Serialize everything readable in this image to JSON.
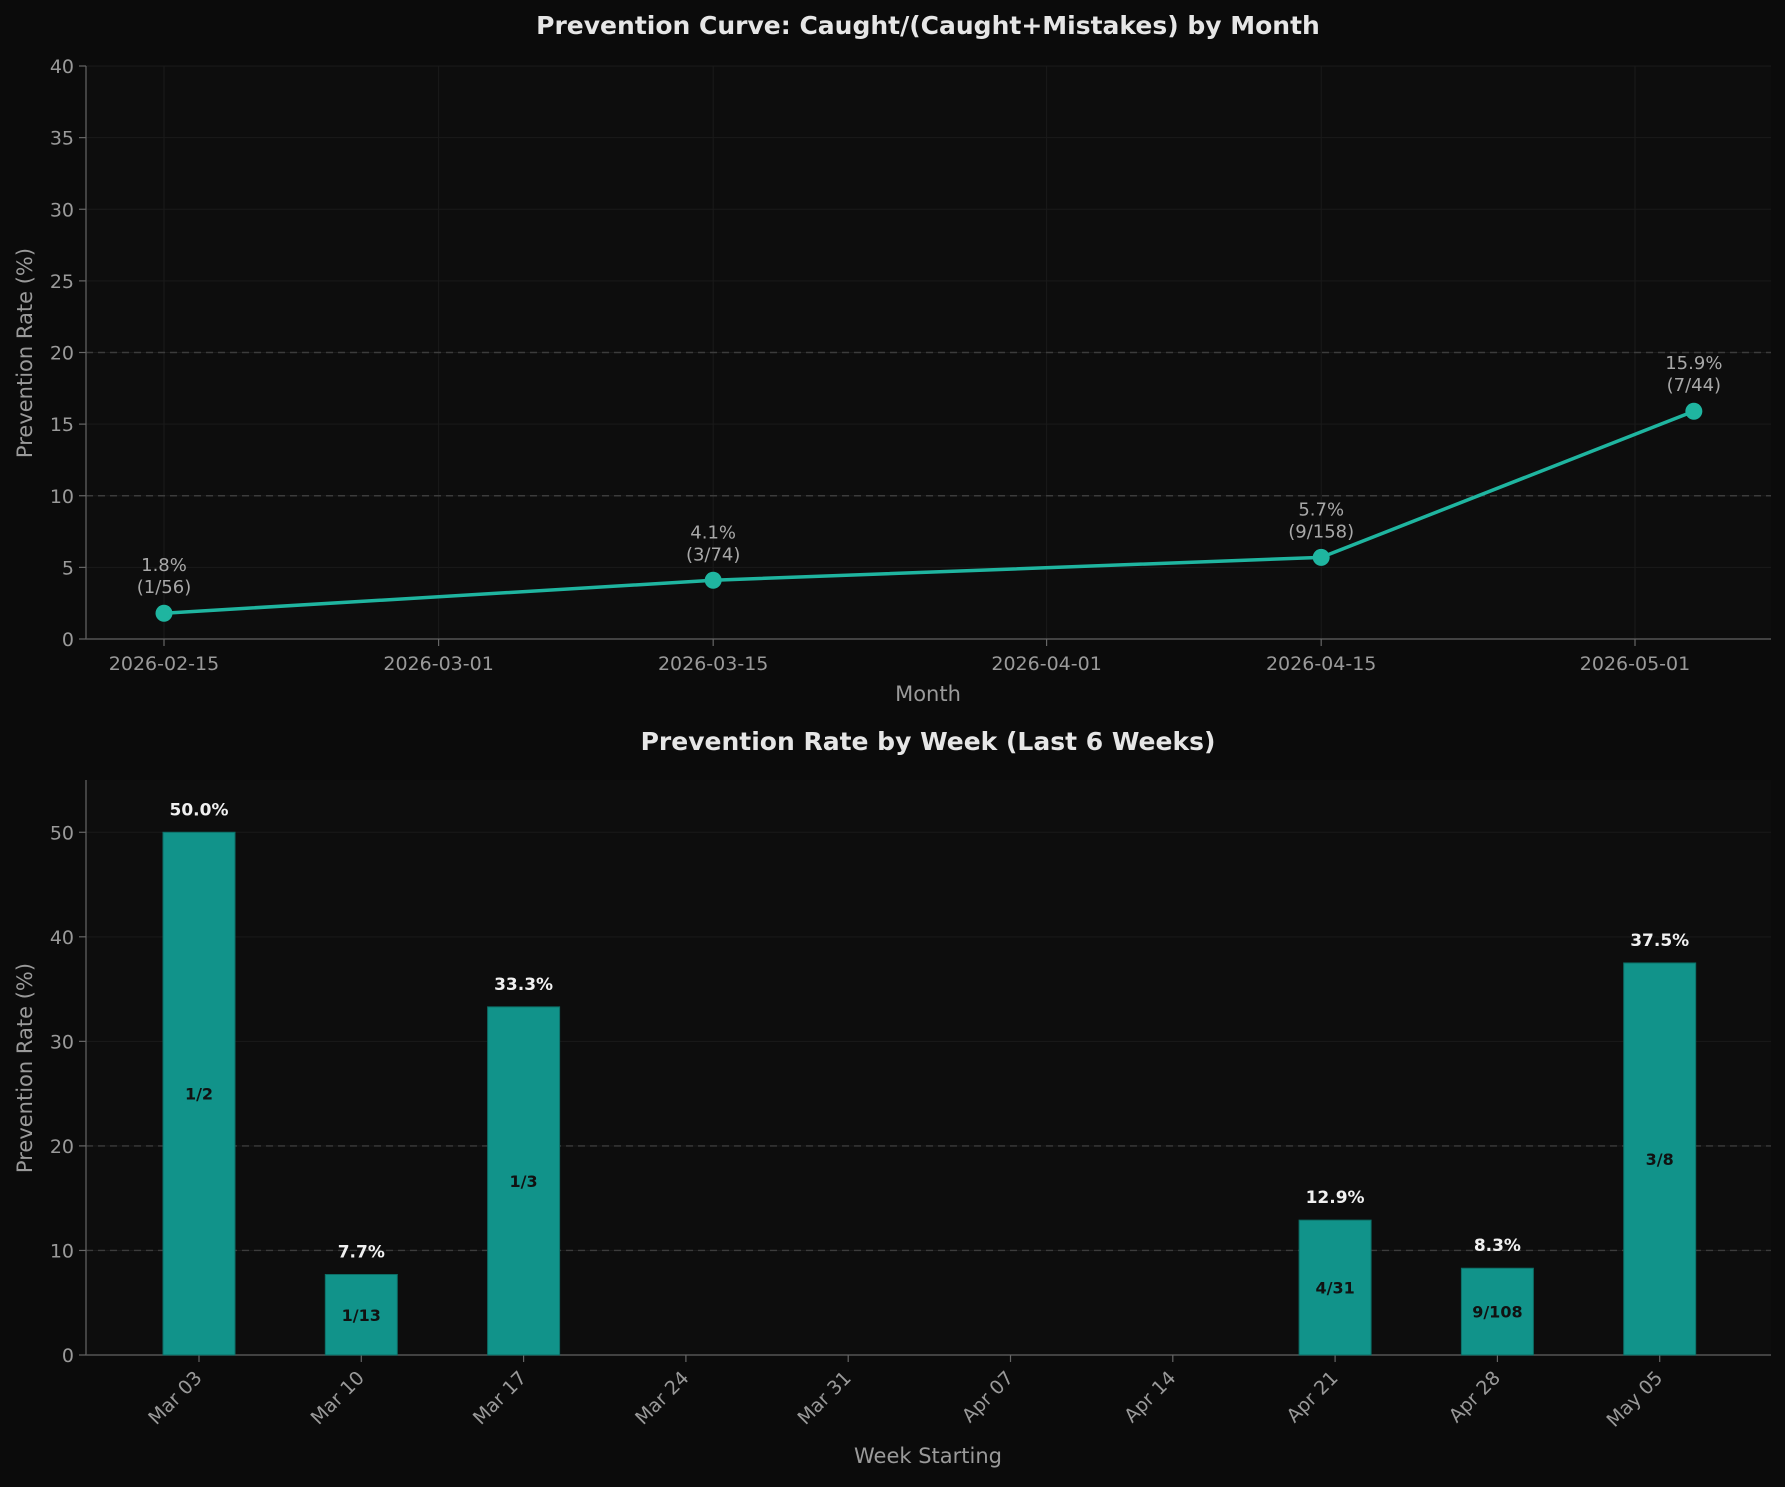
{
  "chart_data": [
    {
      "type": "line",
      "title": "Prevention Curve: Caught/(Caught+Mistakes) by Month",
      "xlabel": "Month",
      "ylabel": "Prevention Rate (%)",
      "ylim": [
        0,
        40
      ],
      "yticks": [
        0,
        5,
        10,
        15,
        20,
        25,
        30,
        35,
        40
      ],
      "xticks": [
        "2026-02-15",
        "2026-03-01",
        "2026-03-15",
        "2026-04-01",
        "2026-04-15",
        "2026-05-01"
      ],
      "x": [
        "2026-02-15",
        "2026-03-15",
        "2026-04-15",
        "2026-05-04"
      ],
      "values": [
        1.8,
        4.1,
        5.7,
        15.9
      ],
      "labels": [
        "1.8%",
        "4.1%",
        "5.7%",
        "15.9%"
      ],
      "counts": [
        "(1/56)",
        "(3/74)",
        "(9/158)",
        "(7/44)"
      ],
      "reference_lines": [
        10,
        20
      ],
      "color": "#1fb5a0"
    },
    {
      "type": "bar",
      "title": "Prevention Rate by Week (Last 6 Weeks)",
      "xlabel": "Week Starting",
      "ylabel": "Prevention Rate (%)",
      "ylim": [
        0,
        55
      ],
      "yticks": [
        0,
        10,
        20,
        30,
        40,
        50
      ],
      "categories": [
        "Mar 03",
        "Mar 10",
        "Mar 17",
        "Mar 24",
        "Mar 31",
        "Apr 07",
        "Apr 14",
        "Apr 21",
        "Apr 28",
        "May 05"
      ],
      "values": [
        50.0,
        7.7,
        33.3,
        null,
        null,
        null,
        null,
        12.9,
        8.3,
        37.5
      ],
      "value_labels": [
        "50.0%",
        "7.7%",
        "33.3%",
        "",
        "",
        "",
        "",
        "12.9%",
        "8.3%",
        "37.5%"
      ],
      "count_labels": [
        "1/2",
        "1/13",
        "1/3",
        "",
        "",
        "",
        "",
        "4/31",
        "9/108",
        "3/8"
      ],
      "reference_lines": [
        10,
        20
      ],
      "color": "#11938a"
    }
  ]
}
